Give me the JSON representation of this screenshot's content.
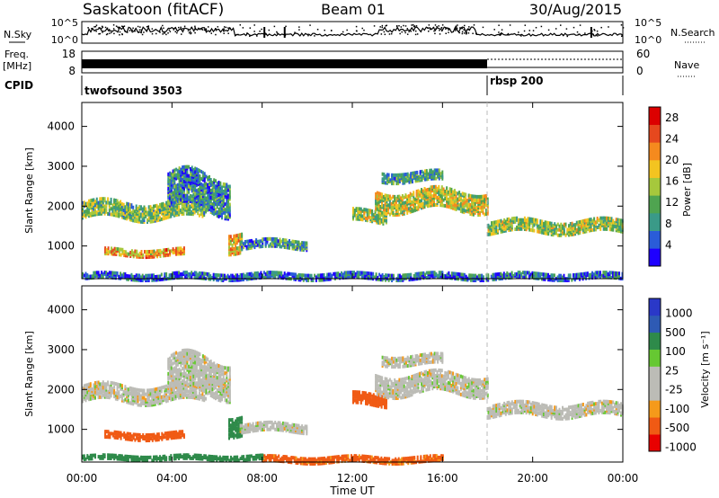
{
  "header": {
    "radar": "Saskatoon (fitACF)",
    "beam": "Beam 01",
    "date": "30/Aug/2015"
  },
  "noise_panel": {
    "left_label": "N.Sky",
    "right_label": "N.Search",
    "left_ticks": [
      "10^5",
      "10^0"
    ],
    "right_ticks": [
      "10^5",
      "10^0"
    ]
  },
  "freq_panel": {
    "left_label_top": "Freq.",
    "left_label_bottom": "[MHz]",
    "right_label": "Nave",
    "left_ticks": [
      "18",
      "8"
    ],
    "right_ticks": [
      "60",
      "0"
    ]
  },
  "cpid_panel": {
    "label": "CPID",
    "modes": [
      {
        "name": "twofsound 3503",
        "start_hour": 0,
        "end_hour": 18
      },
      {
        "name": "rbsp 200",
        "start_hour": 18,
        "end_hour": 24
      }
    ]
  },
  "x_axis": {
    "label": "Time UT",
    "tick_labels": [
      "00:00",
      "04:00",
      "08:00",
      "12:00",
      "16:00",
      "20:00",
      "00:00"
    ]
  },
  "colors": {
    "power": [
      "#1e00ff",
      "#2a5cd8",
      "#3a9a88",
      "#4fa450",
      "#a6c83c",
      "#f3c420",
      "#f58a1e",
      "#e6481e",
      "#dc0000"
    ],
    "velocity": [
      "#e80000",
      "#f05a14",
      "#f59a1a",
      "#bcbcb6",
      "#bcbcb6",
      "#66c832",
      "#2e8a4a",
      "#2e5ab4",
      "#2a38c8"
    ]
  },
  "chart_data": [
    {
      "type": "heatmap",
      "name": "power-panel",
      "x_label": "Time UT",
      "ylabel": "Slant Range [km]",
      "x_range_hours": [
        0,
        24
      ],
      "ylim": [
        180,
        4600
      ],
      "y_tick_labels": [
        "1000",
        "2000",
        "3000",
        "4000"
      ],
      "colorbar": {
        "label": "Power [dB]",
        "ticks": [
          "4",
          "8",
          "12",
          "16",
          "20",
          "24",
          "28"
        ],
        "range": [
          0,
          30
        ]
      },
      "echo_regions": [
        {
          "t_start": 0.0,
          "t_end": 5.5,
          "range_km": 1960,
          "thickness_km": 420,
          "power_db": 13
        },
        {
          "t_start": 1.0,
          "t_end": 4.5,
          "range_km": 900,
          "thickness_km": 180,
          "power_db": 20
        },
        {
          "t_start": 3.8,
          "t_end": 6.6,
          "range_km": 2400,
          "thickness_km": 900,
          "power_db": 8
        },
        {
          "t_start": 6.5,
          "t_end": 7.1,
          "range_km": 1200,
          "thickness_km": 500,
          "power_db": 18
        },
        {
          "t_start": 7.0,
          "t_end": 10.0,
          "range_km": 1100,
          "thickness_km": 220,
          "power_db": 9
        },
        {
          "t_start": 12.0,
          "t_end": 13.5,
          "range_km": 1800,
          "thickness_km": 300,
          "power_db": 14
        },
        {
          "t_start": 13.0,
          "t_end": 18.0,
          "range_km": 2200,
          "thickness_km": 500,
          "power_db": 16
        },
        {
          "t_start": 13.3,
          "t_end": 16.0,
          "range_km": 2800,
          "thickness_km": 250,
          "power_db": 10
        },
        {
          "t_start": 18.0,
          "t_end": 24.0,
          "range_km": 1550,
          "thickness_km": 320,
          "power_db": 14
        },
        {
          "t_start": 0.0,
          "t_end": 24.0,
          "range_km": 300,
          "thickness_km": 160,
          "power_db": 6
        }
      ]
    },
    {
      "type": "heatmap",
      "name": "velocity-panel",
      "x_label": "Time UT",
      "ylabel": "Slant Range [km]",
      "x_range_hours": [
        0,
        24
      ],
      "ylim": [
        180,
        4600
      ],
      "y_tick_labels": [
        "1000",
        "2000",
        "3000",
        "4000"
      ],
      "colorbar": {
        "label": "Velocity [m s⁻¹]",
        "ticks": [
          "1000",
          "500",
          "100",
          "25",
          "-25",
          "-100",
          "-500",
          "-1000"
        ],
        "range": [
          -1200,
          1200
        ]
      },
      "echo_regions": [
        {
          "t_start": 0.0,
          "t_end": 5.5,
          "range_km": 1960,
          "thickness_km": 420,
          "velocity": 0
        },
        {
          "t_start": 1.0,
          "t_end": 4.5,
          "range_km": 900,
          "thickness_km": 180,
          "velocity": -150
        },
        {
          "t_start": 3.8,
          "t_end": 6.6,
          "range_km": 2400,
          "thickness_km": 900,
          "velocity": 0
        },
        {
          "t_start": 6.5,
          "t_end": 7.1,
          "range_km": 1200,
          "thickness_km": 500,
          "velocity": 300
        },
        {
          "t_start": 7.0,
          "t_end": 10.0,
          "range_km": 1100,
          "thickness_km": 220,
          "velocity": 0
        },
        {
          "t_start": 12.0,
          "t_end": 13.5,
          "range_km": 1800,
          "thickness_km": 300,
          "velocity": -200
        },
        {
          "t_start": 13.0,
          "t_end": 18.0,
          "range_km": 2200,
          "thickness_km": 500,
          "velocity": 0
        },
        {
          "t_start": 13.3,
          "t_end": 16.0,
          "range_km": 2800,
          "thickness_km": 250,
          "velocity": 0
        },
        {
          "t_start": 18.0,
          "t_end": 24.0,
          "range_km": 1550,
          "thickness_km": 320,
          "velocity": 0
        },
        {
          "t_start": 8.0,
          "t_end": 16.0,
          "range_km": 300,
          "thickness_km": 160,
          "velocity": -120
        },
        {
          "t_start": 0.0,
          "t_end": 8.0,
          "range_km": 350,
          "thickness_km": 120,
          "velocity": 150
        }
      ]
    }
  ]
}
